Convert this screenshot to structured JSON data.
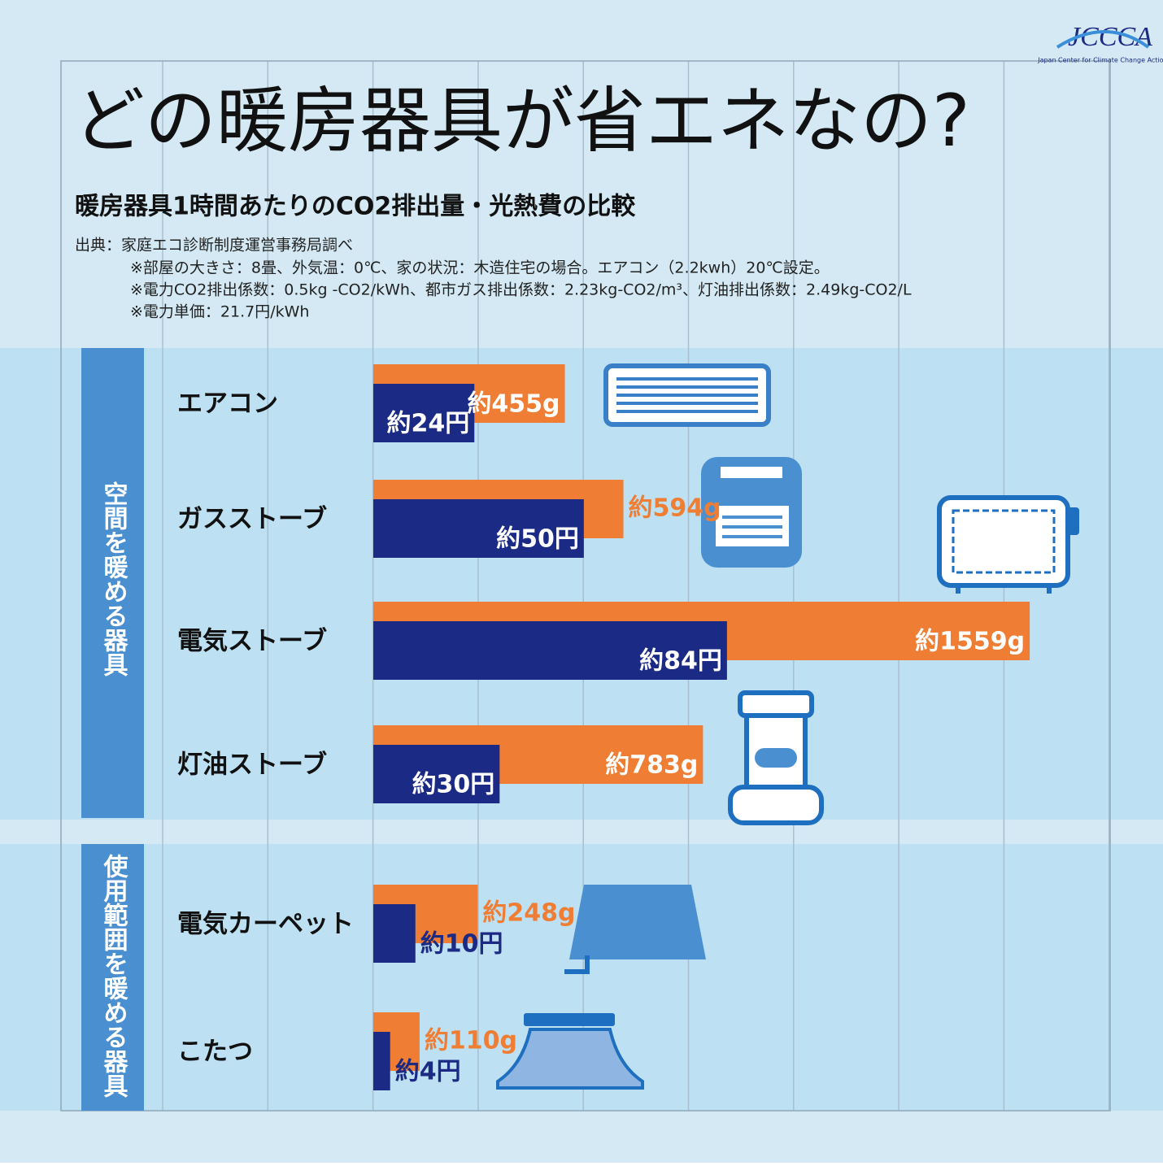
{
  "chart_data": {
    "type": "hbar",
    "title": "どの暖房器具が省エネなの?",
    "subtitle": "暖房器具1時間あたりのCO2排出量・光熱費の比較",
    "source": "出典：家庭エコ診断制度運営事務局調べ",
    "notes": [
      "※部屋の大きさ：8畳、外気温：0℃、家の状況：木造住宅の場合。エアコン（2.2kwh）20℃設定。",
      "※電力CO2排出係数：0.5kg -CO2/kWh、都市ガス排出係数：2.23kg-CO2/m³、灯油排出係数：2.49kg-CO2/L",
      "※電力単価：21.7円/kWh"
    ],
    "logo": "JCCCA",
    "logo_caption": "Japan Center for Climate Change Actions",
    "groups": [
      {
        "label": "空間を暖める器具",
        "categories": [
          "エアコン",
          "ガスストーブ",
          "電気ストーブ",
          "灯油ストーブ"
        ]
      },
      {
        "label": "使用範囲を暖める器具",
        "categories": [
          "電気カーペット",
          "こたつ"
        ]
      }
    ],
    "series": [
      {
        "color": "#ef7d33",
        "values": [
          455,
          594,
          1559,
          783,
          248,
          110
        ],
        "value_labels": [
          "約455g",
          "約594g",
          "約1559g",
          "約783g",
          "約248g",
          "約110g"
        ]
      },
      {
        "color": "#1b2a84",
        "axis": "x2",
        "values": [
          24,
          50,
          84,
          30,
          10,
          4
        ],
        "value_labels": [
          "約24円",
          "約50円",
          "約84円",
          "約30円",
          "約10円",
          "約4円"
        ]
      }
    ],
    "xlim": [
      0,
      1750
    ],
    "x2lim": [
      0,
      175
    ]
  }
}
